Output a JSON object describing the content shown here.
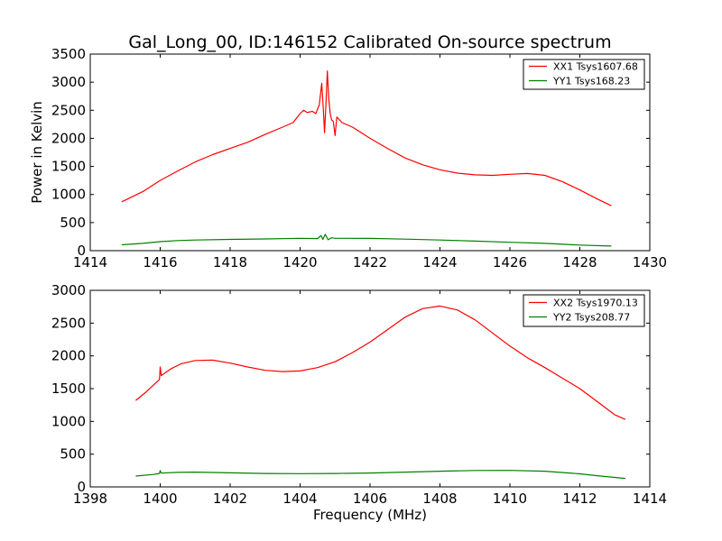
{
  "chart_data": [
    {
      "type": "line",
      "title": "Gal_Long_00, ID:146152 Calibrated On-source spectrum",
      "xlabel": "",
      "ylabel": "Power in Kelvin",
      "xlim": [
        1414,
        1430
      ],
      "ylim": [
        0,
        3500
      ],
      "xticks": [
        "1414",
        "1416",
        "1418",
        "1420",
        "1422",
        "1424",
        "1426",
        "1428",
        "1430"
      ],
      "yticks": [
        "0",
        "500",
        "1000",
        "1500",
        "2000",
        "2500",
        "3000",
        "3500"
      ],
      "grid": false,
      "legend_position": "top-right",
      "series": [
        {
          "name": "XX1 Tsys1607.68",
          "color": "#ff0000",
          "points": [
            [
              1414.9,
              870
            ],
            [
              1415.5,
              1050
            ],
            [
              1416.0,
              1250
            ],
            [
              1416.5,
              1420
            ],
            [
              1417.0,
              1580
            ],
            [
              1417.5,
              1710
            ],
            [
              1418.0,
              1820
            ],
            [
              1418.5,
              1930
            ],
            [
              1419.0,
              2070
            ],
            [
              1419.5,
              2200
            ],
            [
              1419.8,
              2280
            ],
            [
              1420.0,
              2440
            ],
            [
              1420.1,
              2500
            ],
            [
              1420.2,
              2460
            ],
            [
              1420.35,
              2480
            ],
            [
              1420.45,
              2440
            ],
            [
              1420.55,
              2600
            ],
            [
              1420.62,
              2980
            ],
            [
              1420.66,
              2560
            ],
            [
              1420.7,
              2100
            ],
            [
              1420.74,
              2620
            ],
            [
              1420.78,
              3200
            ],
            [
              1420.82,
              2700
            ],
            [
              1420.86,
              2450
            ],
            [
              1420.9,
              2330
            ],
            [
              1420.95,
              2300
            ],
            [
              1421.0,
              2050
            ],
            [
              1421.05,
              2380
            ],
            [
              1421.2,
              2280
            ],
            [
              1421.5,
              2200
            ],
            [
              1422.0,
              2000
            ],
            [
              1422.5,
              1820
            ],
            [
              1423.0,
              1650
            ],
            [
              1423.5,
              1530
            ],
            [
              1424.0,
              1440
            ],
            [
              1424.5,
              1380
            ],
            [
              1425.0,
              1350
            ],
            [
              1425.5,
              1340
            ],
            [
              1426.0,
              1360
            ],
            [
              1426.5,
              1375
            ],
            [
              1427.0,
              1340
            ],
            [
              1427.5,
              1230
            ],
            [
              1428.0,
              1080
            ],
            [
              1428.5,
              920
            ],
            [
              1428.9,
              800
            ]
          ]
        },
        {
          "name": "YY1 Tsys168.23",
          "color": "#008000",
          "points": [
            [
              1414.9,
              105
            ],
            [
              1415.5,
              130
            ],
            [
              1416.0,
              160
            ],
            [
              1416.5,
              180
            ],
            [
              1417.0,
              190
            ],
            [
              1418.0,
              200
            ],
            [
              1419.0,
              208
            ],
            [
              1420.0,
              220
            ],
            [
              1420.5,
              215
            ],
            [
              1420.6,
              270
            ],
            [
              1420.65,
              200
            ],
            [
              1420.72,
              290
            ],
            [
              1420.8,
              195
            ],
            [
              1420.9,
              230
            ],
            [
              1421.0,
              220
            ],
            [
              1422.0,
              218
            ],
            [
              1423.0,
              205
            ],
            [
              1424.0,
              190
            ],
            [
              1425.0,
              170
            ],
            [
              1426.0,
              150
            ],
            [
              1427.0,
              130
            ],
            [
              1428.0,
              100
            ],
            [
              1428.9,
              82
            ]
          ]
        }
      ]
    },
    {
      "type": "line",
      "title": "",
      "xlabel": "Frequency (MHz)",
      "ylabel": "",
      "xlim": [
        1398,
        1414
      ],
      "ylim": [
        0,
        3000
      ],
      "xticks": [
        "1398",
        "1400",
        "1402",
        "1404",
        "1406",
        "1408",
        "1410",
        "1412",
        "1414"
      ],
      "yticks": [
        "0",
        "500",
        "1000",
        "1500",
        "2000",
        "2500",
        "3000"
      ],
      "grid": false,
      "legend_position": "top-right",
      "series": [
        {
          "name": "XX2 Tsys1970.13",
          "color": "#ff0000",
          "points": [
            [
              1399.3,
              1320
            ],
            [
              1399.6,
              1450
            ],
            [
              1399.9,
              1600
            ],
            [
              1399.98,
              1640
            ],
            [
              1400.0,
              1830
            ],
            [
              1400.03,
              1700
            ],
            [
              1400.3,
              1800
            ],
            [
              1400.6,
              1880
            ],
            [
              1401.0,
              1930
            ],
            [
              1401.5,
              1935
            ],
            [
              1402.0,
              1890
            ],
            [
              1402.5,
              1830
            ],
            [
              1403.0,
              1780
            ],
            [
              1403.5,
              1760
            ],
            [
              1404.0,
              1770
            ],
            [
              1404.5,
              1820
            ],
            [
              1405.0,
              1910
            ],
            [
              1405.5,
              2050
            ],
            [
              1406.0,
              2210
            ],
            [
              1406.5,
              2400
            ],
            [
              1407.0,
              2590
            ],
            [
              1407.5,
              2720
            ],
            [
              1408.0,
              2760
            ],
            [
              1408.5,
              2700
            ],
            [
              1409.0,
              2550
            ],
            [
              1409.5,
              2350
            ],
            [
              1410.0,
              2150
            ],
            [
              1410.5,
              1970
            ],
            [
              1411.0,
              1820
            ],
            [
              1411.5,
              1660
            ],
            [
              1412.0,
              1500
            ],
            [
              1412.5,
              1300
            ],
            [
              1413.0,
              1100
            ],
            [
              1413.3,
              1030
            ]
          ]
        },
        {
          "name": "YY2 Tsys208.77",
          "color": "#008000",
          "points": [
            [
              1399.3,
              165
            ],
            [
              1399.8,
              190
            ],
            [
              1399.98,
              205
            ],
            [
              1400.0,
              250
            ],
            [
              1400.03,
              210
            ],
            [
              1400.5,
              222
            ],
            [
              1401.0,
              225
            ],
            [
              1402.0,
              215
            ],
            [
              1403.0,
              205
            ],
            [
              1404.0,
              202
            ],
            [
              1405.0,
              205
            ],
            [
              1406.0,
              212
            ],
            [
              1407.0,
              225
            ],
            [
              1408.0,
              240
            ],
            [
              1409.0,
              250
            ],
            [
              1410.0,
              252
            ],
            [
              1411.0,
              240
            ],
            [
              1412.0,
              200
            ],
            [
              1412.5,
              170
            ],
            [
              1413.3,
              130
            ]
          ]
        }
      ]
    }
  ]
}
